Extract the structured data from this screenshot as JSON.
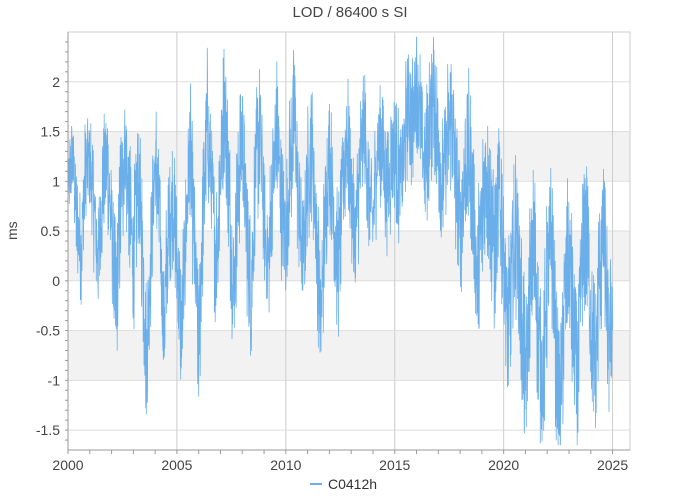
{
  "chart_data": {
    "type": "line",
    "title": "LOD / 86400 s SI",
    "xlabel": "",
    "ylabel": "ms",
    "xlim": [
      2000,
      2025.8
    ],
    "ylim": [
      -1.7,
      2.5
    ],
    "x_ticks": [
      "2000",
      "2005",
      "2010",
      "2015",
      "2020",
      "2025"
    ],
    "y_ticks": [
      "-1.5",
      "-1",
      "-0.5",
      "0",
      "0.5",
      "1",
      "1.5",
      "2"
    ],
    "grid": true,
    "legend": "bottom-center",
    "series": [
      {
        "name": "C0412h",
        "color": "#6aaeea",
        "points": [
          [
            2000.0,
            0.9
          ],
          [
            2000.2,
            1.3
          ],
          [
            2000.4,
            0.6
          ],
          [
            2000.6,
            0.3
          ],
          [
            2000.8,
            1.1
          ],
          [
            2001.0,
            1.2
          ],
          [
            2001.2,
            0.7
          ],
          [
            2001.4,
            0.2
          ],
          [
            2001.6,
            1.0
          ],
          [
            2001.8,
            1.2
          ],
          [
            2002.0,
            0.5
          ],
          [
            2002.2,
            -0.3
          ],
          [
            2002.4,
            0.7
          ],
          [
            2002.6,
            1.4
          ],
          [
            2002.8,
            0.8
          ],
          [
            2003.0,
            0.2
          ],
          [
            2003.2,
            1.0
          ],
          [
            2003.4,
            0.4
          ],
          [
            2003.6,
            -0.8
          ],
          [
            2003.8,
            0.3
          ],
          [
            2004.0,
            1.2
          ],
          [
            2004.2,
            0.6
          ],
          [
            2004.4,
            -0.5
          ],
          [
            2004.6,
            0.4
          ],
          [
            2004.8,
            0.9
          ],
          [
            2005.0,
            0.2
          ],
          [
            2005.2,
            -0.6
          ],
          [
            2005.4,
            0.5
          ],
          [
            2005.6,
            1.3
          ],
          [
            2005.8,
            0.4
          ],
          [
            2006.0,
            -0.7
          ],
          [
            2006.2,
            0.7
          ],
          [
            2006.4,
            1.6
          ],
          [
            2006.6,
            0.9
          ],
          [
            2006.8,
            0.2
          ],
          [
            2007.0,
            1.1
          ],
          [
            2007.2,
            1.8
          ],
          [
            2007.4,
            0.8
          ],
          [
            2007.6,
            -0.1
          ],
          [
            2007.8,
            0.9
          ],
          [
            2008.0,
            1.5
          ],
          [
            2008.2,
            0.5
          ],
          [
            2008.4,
            -0.2
          ],
          [
            2008.6,
            1.0
          ],
          [
            2008.8,
            1.6
          ],
          [
            2009.0,
            0.6
          ],
          [
            2009.2,
            0.1
          ],
          [
            2009.4,
            1.0
          ],
          [
            2009.6,
            1.5
          ],
          [
            2009.8,
            0.8
          ],
          [
            2010.0,
            0.4
          ],
          [
            2010.2,
            1.2
          ],
          [
            2010.4,
            1.7
          ],
          [
            2010.6,
            0.7
          ],
          [
            2010.8,
            0.2
          ],
          [
            2011.0,
            1.0
          ],
          [
            2011.2,
            1.4
          ],
          [
            2011.4,
            0.5
          ],
          [
            2011.6,
            -0.4
          ],
          [
            2011.8,
            0.6
          ],
          [
            2012.0,
            1.3
          ],
          [
            2012.2,
            0.6
          ],
          [
            2012.4,
            0.1
          ],
          [
            2012.6,
            0.9
          ],
          [
            2012.8,
            1.5
          ],
          [
            2013.0,
            0.9
          ],
          [
            2013.2,
            0.4
          ],
          [
            2013.4,
            1.1
          ],
          [
            2013.6,
            1.6
          ],
          [
            2013.8,
            0.8
          ],
          [
            2014.0,
            0.6
          ],
          [
            2014.2,
            1.3
          ],
          [
            2014.4,
            1.5
          ],
          [
            2014.6,
            0.9
          ],
          [
            2014.8,
            1.1
          ],
          [
            2015.0,
            1.4
          ],
          [
            2015.2,
            1.0
          ],
          [
            2015.4,
            1.2
          ],
          [
            2015.6,
            1.8
          ],
          [
            2015.8,
            1.5
          ],
          [
            2016.0,
            2.1
          ],
          [
            2016.2,
            1.5
          ],
          [
            2016.4,
            1.1
          ],
          [
            2016.6,
            1.6
          ],
          [
            2016.8,
            1.9
          ],
          [
            2017.0,
            1.3
          ],
          [
            2017.2,
            0.9
          ],
          [
            2017.4,
            1.4
          ],
          [
            2017.6,
            1.7
          ],
          [
            2017.8,
            1.0
          ],
          [
            2018.0,
            0.5
          ],
          [
            2018.2,
            1.1
          ],
          [
            2018.4,
            1.3
          ],
          [
            2018.6,
            0.7
          ],
          [
            2018.8,
            0.0
          ],
          [
            2019.0,
            0.6
          ],
          [
            2019.2,
            1.1
          ],
          [
            2019.4,
            0.8
          ],
          [
            2019.6,
            0.2
          ],
          [
            2019.8,
            0.9
          ],
          [
            2020.0,
            0.3
          ],
          [
            2020.2,
            -0.6
          ],
          [
            2020.4,
            0.1
          ],
          [
            2020.6,
            0.6
          ],
          [
            2020.8,
            -0.3
          ],
          [
            2021.0,
            -1.1
          ],
          [
            2021.2,
            -0.1
          ],
          [
            2021.4,
            0.4
          ],
          [
            2021.6,
            -0.6
          ],
          [
            2021.8,
            -1.0
          ],
          [
            2022.0,
            0.0
          ],
          [
            2022.2,
            0.5
          ],
          [
            2022.4,
            -0.7
          ],
          [
            2022.6,
            -1.3
          ],
          [
            2022.8,
            -0.2
          ],
          [
            2023.0,
            0.3
          ],
          [
            2023.2,
            -0.5
          ],
          [
            2023.4,
            -1.0
          ],
          [
            2023.6,
            0.2
          ],
          [
            2023.8,
            0.6
          ],
          [
            2024.0,
            -0.4
          ],
          [
            2024.2,
            -0.9
          ],
          [
            2024.4,
            0.1
          ],
          [
            2024.6,
            0.5
          ],
          [
            2024.8,
            -0.6
          ],
          [
            2025.0,
            -0.3
          ]
        ],
        "variation": [
          [
            2000.0,
            0.4
          ],
          [
            2002.0,
            0.7
          ],
          [
            2005.0,
            0.7
          ],
          [
            2010.0,
            0.7
          ],
          [
            2015.0,
            0.6
          ],
          [
            2020.0,
            0.8
          ],
          [
            2025.0,
            0.8
          ]
        ],
        "range": [
          -1.65,
          2.45
        ]
      }
    ]
  }
}
